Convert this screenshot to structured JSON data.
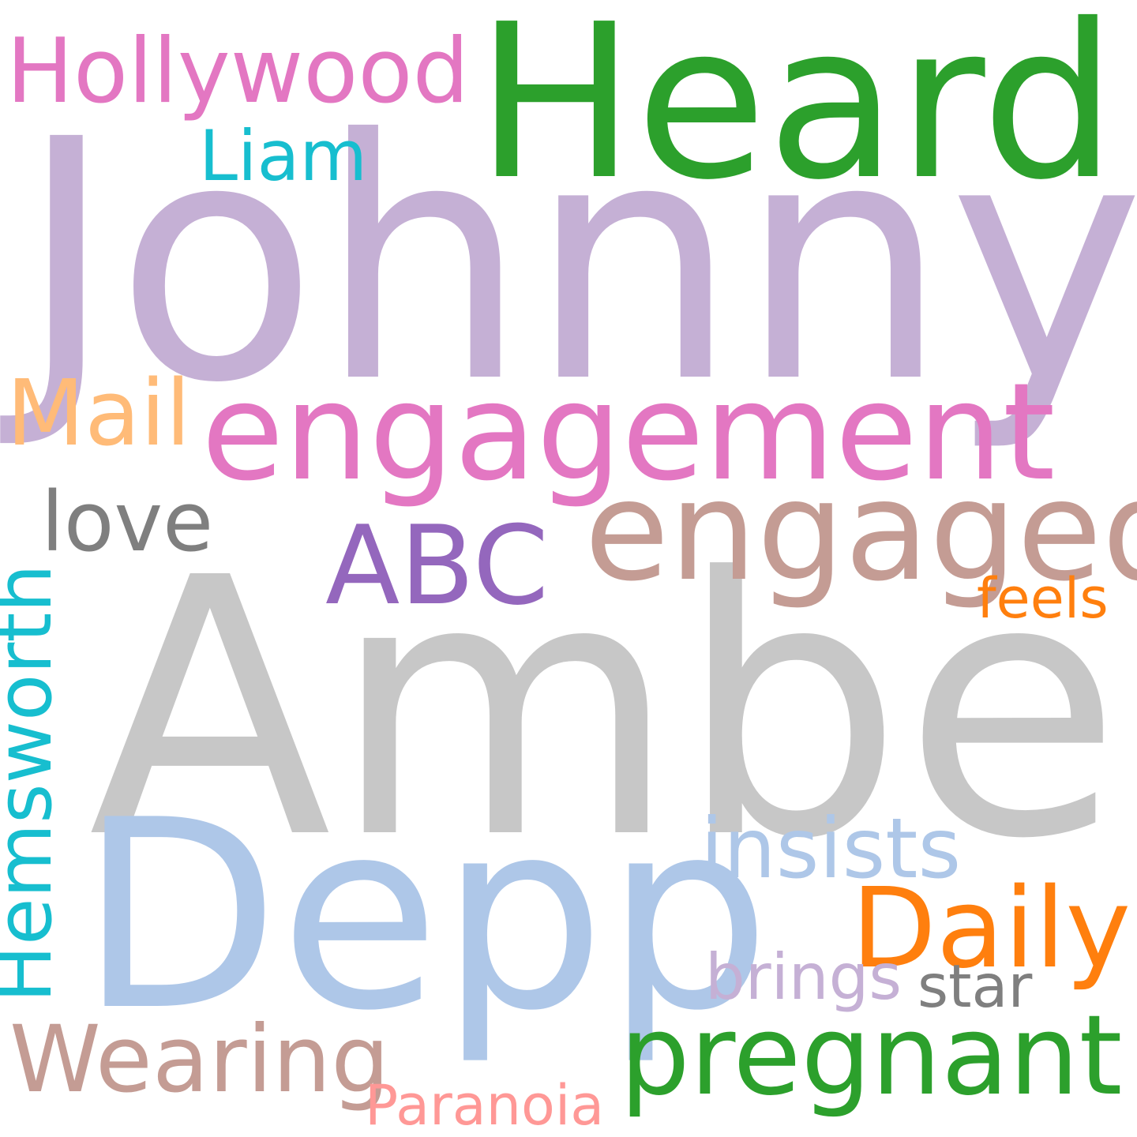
{
  "words": [
    {
      "key": "johnny",
      "text": "Johnny",
      "color": "#c5b0d5"
    },
    {
      "key": "amber",
      "text": "Amber",
      "color": "#c7c7c7"
    },
    {
      "key": "heard",
      "text": "Heard",
      "color": "#2ca02c"
    },
    {
      "key": "depp",
      "text": "Depp",
      "color": "#aec7e8"
    },
    {
      "key": "engagement",
      "text": "engagement",
      "color": "#e377c2"
    },
    {
      "key": "engaged",
      "text": "engaged",
      "color": "#c49c94"
    },
    {
      "key": "pregnant",
      "text": "pregnant",
      "color": "#2ca02c"
    },
    {
      "key": "hollywood",
      "text": "Hollywood",
      "color": "#e377c2"
    },
    {
      "key": "daily",
      "text": "Daily",
      "color": "#ff7f0e"
    },
    {
      "key": "abc",
      "text": "ABC",
      "color": "#9467bd"
    },
    {
      "key": "wearing",
      "text": "Wearing",
      "color": "#c49c94"
    },
    {
      "key": "insists",
      "text": "insists",
      "color": "#aec7e8"
    },
    {
      "key": "hemsworth",
      "text": "Hemsworth",
      "color": "#17becf"
    },
    {
      "key": "mail",
      "text": "Mail",
      "color": "#ffbb78"
    },
    {
      "key": "love",
      "text": "love",
      "color": "#7f7f7f"
    },
    {
      "key": "liam",
      "text": "Liam",
      "color": "#17becf"
    },
    {
      "key": "brings",
      "text": "brings",
      "color": "#c5b0d5"
    },
    {
      "key": "star",
      "text": "star",
      "color": "#7f7f7f"
    },
    {
      "key": "paranoia",
      "text": "Paranoia",
      "color": "#ff9896"
    },
    {
      "key": "feels",
      "text": "feels",
      "color": "#ff7f0e"
    }
  ]
}
